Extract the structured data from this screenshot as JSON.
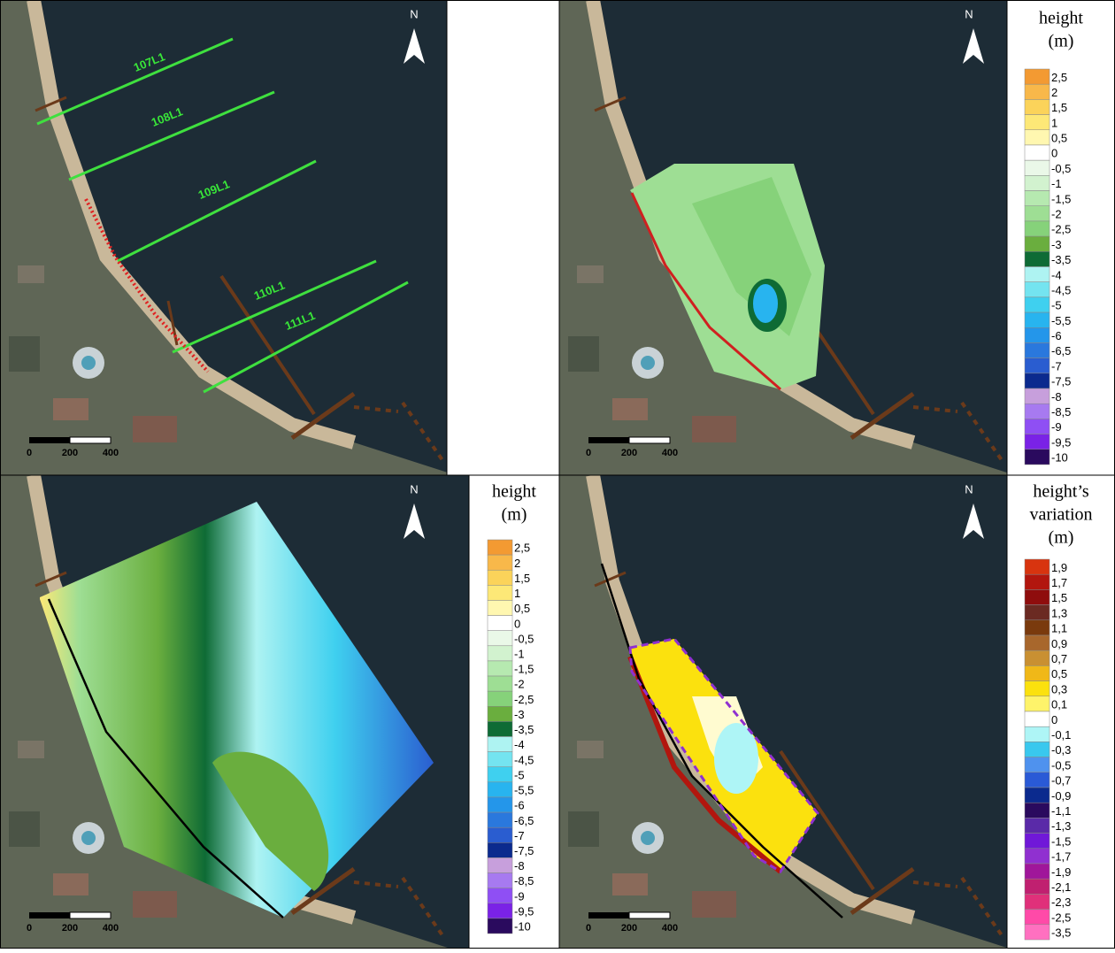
{
  "panels": [
    {
      "north": "N",
      "scale": [
        "0",
        "200",
        "400"
      ],
      "lines": [
        "107L1",
        "108L1",
        "109L1",
        "110L1",
        "111L1"
      ]
    },
    {
      "north": "N",
      "scale": [
        "0",
        "200",
        "400"
      ]
    },
    {
      "north": "N",
      "scale": [
        "0",
        "200",
        "400"
      ]
    },
    {
      "north": "N",
      "scale": [
        "0",
        "200",
        "400"
      ]
    }
  ],
  "legends": [
    {
      "title": [
        "height",
        "(m)"
      ],
      "labels": [
        "2,5",
        "2",
        "1,5",
        "1",
        "0,5",
        "0",
        "-0,5",
        "-1",
        "-1,5",
        "-2",
        "-2,5",
        "-3",
        "-3,5",
        "-4",
        "-4,5",
        "-5",
        "-5,5",
        "-6",
        "-6,5",
        "-7",
        "-7,5",
        "-8",
        "-8,5",
        "-9",
        "-9,5",
        "-10"
      ],
      "colors": [
        "#f39a32",
        "#f8b84a",
        "#fbd35a",
        "#fde877",
        "#fff7b0",
        "#ffffff",
        "#eaf8e8",
        "#d2f2cf",
        "#b6e9b0",
        "#9ede94",
        "#86d27a",
        "#6aae3e",
        "#0e6b35",
        "#aef3f2",
        "#74e4f0",
        "#3fd0ef",
        "#28b4ef",
        "#2496ea",
        "#2a78dd",
        "#2a5dd0",
        "#0b2a8e",
        "#c79fdc",
        "#a77af0",
        "#8f4ff4",
        "#7a22e6",
        "#2a0a5e"
      ]
    },
    {
      "title": [
        "height",
        "(m)"
      ],
      "labels": [
        "2,5",
        "2",
        "1,5",
        "1",
        "0,5",
        "0",
        "-0,5",
        "-1",
        "-1,5",
        "-2",
        "-2,5",
        "-3",
        "-3,5",
        "-4",
        "-4,5",
        "-5",
        "-5,5",
        "-6",
        "-6,5",
        "-7",
        "-7,5",
        "-8",
        "-8,5",
        "-9",
        "-9,5",
        "-10"
      ],
      "colors": [
        "#f39a32",
        "#f8b84a",
        "#fbd35a",
        "#fde877",
        "#fff7b0",
        "#ffffff",
        "#eaf8e8",
        "#d2f2cf",
        "#b6e9b0",
        "#9ede94",
        "#86d27a",
        "#6aae3e",
        "#0e6b35",
        "#aef3f2",
        "#74e4f0",
        "#3fd0ef",
        "#28b4ef",
        "#2496ea",
        "#2a78dd",
        "#2a5dd0",
        "#0b2a8e",
        "#c79fdc",
        "#a77af0",
        "#8f4ff4",
        "#7a22e6",
        "#2a0a5e"
      ]
    },
    {
      "title": [
        "height’s",
        "variation",
        "(m)"
      ],
      "labels": [
        "1,9",
        "1,7",
        "1,5",
        "1,3",
        "1,1",
        "0,9",
        "0,7",
        "0,5",
        "0,3",
        "0,1",
        "0",
        "-0,1",
        "-0,3",
        "-0,5",
        "-0,7",
        "-0,9",
        "-1,1",
        "-1,3",
        "-1,5",
        "-1,7",
        "-1,9",
        "-2,1",
        "-2,3",
        "-2,5",
        "-3,5"
      ],
      "colors": [
        "#d8340f",
        "#b2160e",
        "#8f0d0d",
        "#6b2a22",
        "#7a3a0d",
        "#a8672c",
        "#c99032",
        "#f0b818",
        "#fbe10e",
        "#fef36a",
        "#ffffff",
        "#aef5f6",
        "#39c8ee",
        "#4f92ee",
        "#2a5ad6",
        "#0b2a8e",
        "#2a0a5e",
        "#5a2aa8",
        "#7018d8",
        "#9030d0",
        "#a0169a",
        "#c02070",
        "#e0307a",
        "#ff4aa8",
        "#ff70c0"
      ]
    }
  ]
}
